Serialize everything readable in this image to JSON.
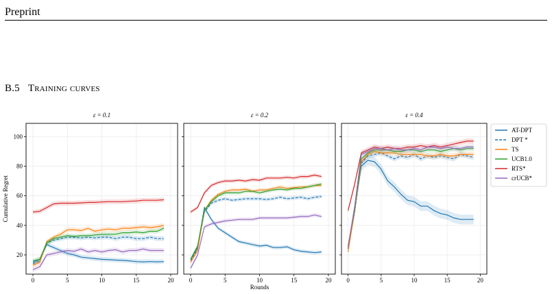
{
  "page": {
    "header": "Preprint",
    "section_number": "B.5",
    "section_title": "Training curves"
  },
  "chart_data": [
    {
      "type": "line",
      "title": "ε = 0.1",
      "xlabel": "",
      "ylabel": "Cumulative Regret",
      "xlim": [
        -1,
        21
      ],
      "ylim": [
        7,
        109
      ],
      "xticks": [
        0,
        5,
        10,
        15,
        20
      ],
      "yticks": [
        20,
        40,
        60,
        80,
        100
      ],
      "grid": true,
      "x": [
        0,
        1,
        2,
        3,
        4,
        5,
        6,
        7,
        8,
        9,
        10,
        11,
        12,
        13,
        14,
        15,
        16,
        17,
        18,
        19
      ],
      "series": [
        {
          "name": "AT-DPT",
          "values": [
            15,
            17,
            27,
            25,
            23,
            21,
            20,
            18.5,
            18,
            17.5,
            17,
            16.8,
            16.5,
            16.3,
            16,
            15.5,
            15.3,
            15.5,
            15.3,
            15.5
          ]
        },
        {
          "name": "DPT *",
          "values": [
            14,
            16,
            28,
            30,
            31,
            32,
            32,
            31.5,
            32,
            31.5,
            32,
            32,
            31,
            32,
            32,
            31,
            31,
            32,
            31,
            31
          ]
        },
        {
          "name": "TS",
          "values": [
            13,
            15,
            29,
            32,
            34,
            37,
            37,
            36.5,
            38,
            36,
            37,
            37.5,
            37,
            38,
            38,
            38.5,
            39,
            38.5,
            39,
            40
          ]
        },
        {
          "name": "UCB1.0",
          "values": [
            16,
            17,
            28,
            31,
            32,
            33,
            32.5,
            33,
            33,
            33.5,
            34,
            34,
            34,
            35,
            35,
            35.5,
            35,
            36,
            36,
            38
          ]
        },
        {
          "name": "RTS*",
          "values": [
            49,
            49.5,
            52,
            54.5,
            55,
            55,
            55,
            55.2,
            55.5,
            55.5,
            55.8,
            56,
            56,
            56,
            56.3,
            56.5,
            57,
            57,
            57,
            57.3
          ]
        },
        {
          "name": "crUCB*",
          "values": [
            10,
            12,
            20,
            21,
            22,
            23,
            22.5,
            24,
            22,
            23,
            22,
            23,
            23.5,
            22,
            23,
            23,
            24,
            23,
            23,
            23
          ]
        }
      ]
    },
    {
      "type": "line",
      "title": "ε = 0.2",
      "xlabel": "Rounds",
      "ylabel": "",
      "xlim": [
        -1,
        21
      ],
      "ylim": [
        7,
        109
      ],
      "xticks": [
        0,
        5,
        10,
        15,
        20
      ],
      "yticks": [
        20,
        40,
        60,
        80,
        100
      ],
      "grid": true,
      "x": [
        0,
        1,
        2,
        3,
        4,
        5,
        6,
        7,
        8,
        9,
        10,
        11,
        12,
        13,
        14,
        15,
        16,
        17,
        18,
        19
      ],
      "series": [
        {
          "name": "AT-DPT",
          "values": [
            17,
            25,
            52,
            44,
            38,
            35,
            32,
            29,
            28,
            27,
            26,
            26.5,
            25,
            25,
            25.5,
            23.5,
            22.5,
            22,
            21.5,
            22
          ]
        },
        {
          "name": "DPT *",
          "values": [
            16,
            24,
            49,
            55,
            57,
            58,
            57,
            57.5,
            58,
            58,
            58,
            57.5,
            58,
            59,
            58,
            58.5,
            59,
            58,
            59,
            59.5
          ]
        },
        {
          "name": "TS",
          "values": [
            15,
            23,
            50,
            57,
            61,
            63,
            64,
            64,
            64.5,
            63,
            64,
            64,
            65,
            66,
            65,
            65.5,
            66,
            66,
            67,
            67
          ]
        },
        {
          "name": "UCB1.0",
          "values": [
            17,
            26,
            50,
            56,
            60,
            62,
            62,
            62,
            63,
            63,
            62,
            63,
            64,
            64.5,
            64,
            65,
            65,
            66,
            67,
            68
          ]
        },
        {
          "name": "RTS*",
          "values": [
            49,
            52,
            62,
            67,
            69,
            70,
            70,
            70.5,
            70,
            71,
            70.5,
            72,
            72,
            72,
            72.5,
            72,
            73,
            73,
            74,
            73
          ]
        },
        {
          "name": "crUCB*",
          "values": [
            11,
            20,
            39,
            41,
            42,
            43,
            43.5,
            44,
            44,
            44,
            45,
            45,
            45,
            45,
            45,
            45.5,
            46,
            46,
            47,
            46
          ]
        }
      ]
    },
    {
      "type": "line",
      "title": "ε = 0.4",
      "xlabel": "",
      "ylabel": "",
      "xlim": [
        -1,
        21
      ],
      "ylim": [
        7,
        109
      ],
      "xticks": [
        0,
        5,
        10,
        15,
        20
      ],
      "yticks": [
        20,
        40,
        60,
        80,
        100
      ],
      "grid": true,
      "x": [
        0,
        1,
        2,
        3,
        4,
        5,
        6,
        7,
        8,
        9,
        10,
        11,
        12,
        13,
        14,
        15,
        16,
        17,
        18,
        19
      ],
      "series": [
        {
          "name": "AT-DPT",
          "values": [
            25,
            52,
            80,
            84,
            83,
            78,
            70,
            66,
            61,
            57,
            56,
            53,
            53,
            50,
            48,
            47,
            45,
            44,
            44,
            44
          ]
        },
        {
          "name": "DPT *",
          "values": [
            24,
            49,
            82,
            87,
            88,
            89,
            87,
            85,
            87,
            86,
            88,
            85,
            87,
            86,
            87,
            86,
            85,
            88,
            87,
            86
          ]
        },
        {
          "name": "TS",
          "values": [
            22,
            50,
            83,
            88,
            90,
            89,
            89,
            89,
            88,
            88,
            88,
            88,
            87,
            87,
            88,
            87,
            87,
            88,
            88,
            88
          ]
        },
        {
          "name": "UCB1.0",
          "values": [
            26,
            51,
            85,
            89,
            91,
            91,
            91,
            90,
            90,
            91,
            91,
            90,
            91,
            91,
            90,
            91,
            92,
            91,
            92,
            92
          ]
        },
        {
          "name": "RTS*",
          "values": [
            50,
            68,
            89,
            91,
            93,
            92,
            93,
            92,
            92,
            93,
            93,
            94,
            93,
            94,
            93,
            94,
            95,
            96,
            97,
            97
          ]
        },
        {
          "name": "crUCB*",
          "values": [
            25,
            53,
            88,
            90,
            92,
            92,
            91,
            92,
            91,
            91,
            92,
            91,
            93,
            93,
            92,
            93,
            92,
            92,
            93,
            93
          ]
        }
      ]
    }
  ],
  "legend": {
    "placement": "right",
    "items": [
      {
        "label": "AT-DPT",
        "color": "#1f77b4",
        "dash": "solid"
      },
      {
        "label": "DPT *",
        "color": "#1f77b4",
        "dash": "dashed"
      },
      {
        "label": "TS",
        "color": "#ff7f0e",
        "dash": "solid"
      },
      {
        "label": "UCB1.0",
        "color": "#2ca02c",
        "dash": "solid"
      },
      {
        "label": "RTS*",
        "color": "#d62728",
        "dash": "solid"
      },
      {
        "label": "crUCB*",
        "color": "#9467bd",
        "dash": "solid"
      }
    ]
  }
}
